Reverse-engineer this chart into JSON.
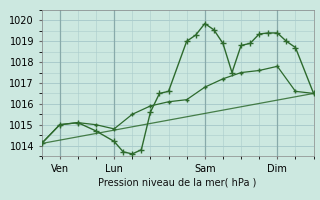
{
  "title": "",
  "xlabel": "Pression niveau de la mer( hPa )",
  "ylabel": "",
  "bg_color": "#cce8e0",
  "grid_color": "#aacccc",
  "line_color": "#2d6a2d",
  "ylim": [
    1013.5,
    1020.5
  ],
  "xlim": [
    0,
    90
  ],
  "yticks": [
    1014,
    1015,
    1016,
    1017,
    1018,
    1019,
    1020
  ],
  "day_ticks": [
    {
      "x": 6,
      "label": "Ven"
    },
    {
      "x": 24,
      "label": "Lun"
    },
    {
      "x": 54,
      "label": "Sam"
    },
    {
      "x": 78,
      "label": "Dim"
    }
  ],
  "series_smooth": {
    "x": [
      0,
      6,
      12,
      18,
      24,
      30,
      36,
      42,
      48,
      54,
      60,
      66,
      72,
      78,
      84,
      90
    ],
    "y": [
      1014.1,
      1015.0,
      1015.1,
      1015.0,
      1014.8,
      1015.5,
      1015.9,
      1016.1,
      1016.2,
      1016.8,
      1017.2,
      1017.5,
      1017.6,
      1017.8,
      1016.6,
      1016.5
    ]
  },
  "series_main": {
    "x": [
      0,
      6,
      12,
      18,
      24,
      27,
      30,
      33,
      36,
      39,
      42,
      48,
      51,
      54,
      57,
      60,
      63,
      66,
      69,
      72,
      75,
      78,
      81,
      84,
      90
    ],
    "y": [
      1014.1,
      1015.0,
      1015.1,
      1014.7,
      1014.2,
      1013.7,
      1013.6,
      1013.8,
      1015.6,
      1016.5,
      1016.6,
      1019.0,
      1019.3,
      1019.85,
      1019.55,
      1018.9,
      1017.5,
      1018.8,
      1018.9,
      1019.35,
      1019.4,
      1019.4,
      1019.0,
      1018.7,
      1016.5
    ]
  },
  "series_linear": {
    "x": [
      0,
      90
    ],
    "y": [
      1014.1,
      1016.5
    ]
  }
}
